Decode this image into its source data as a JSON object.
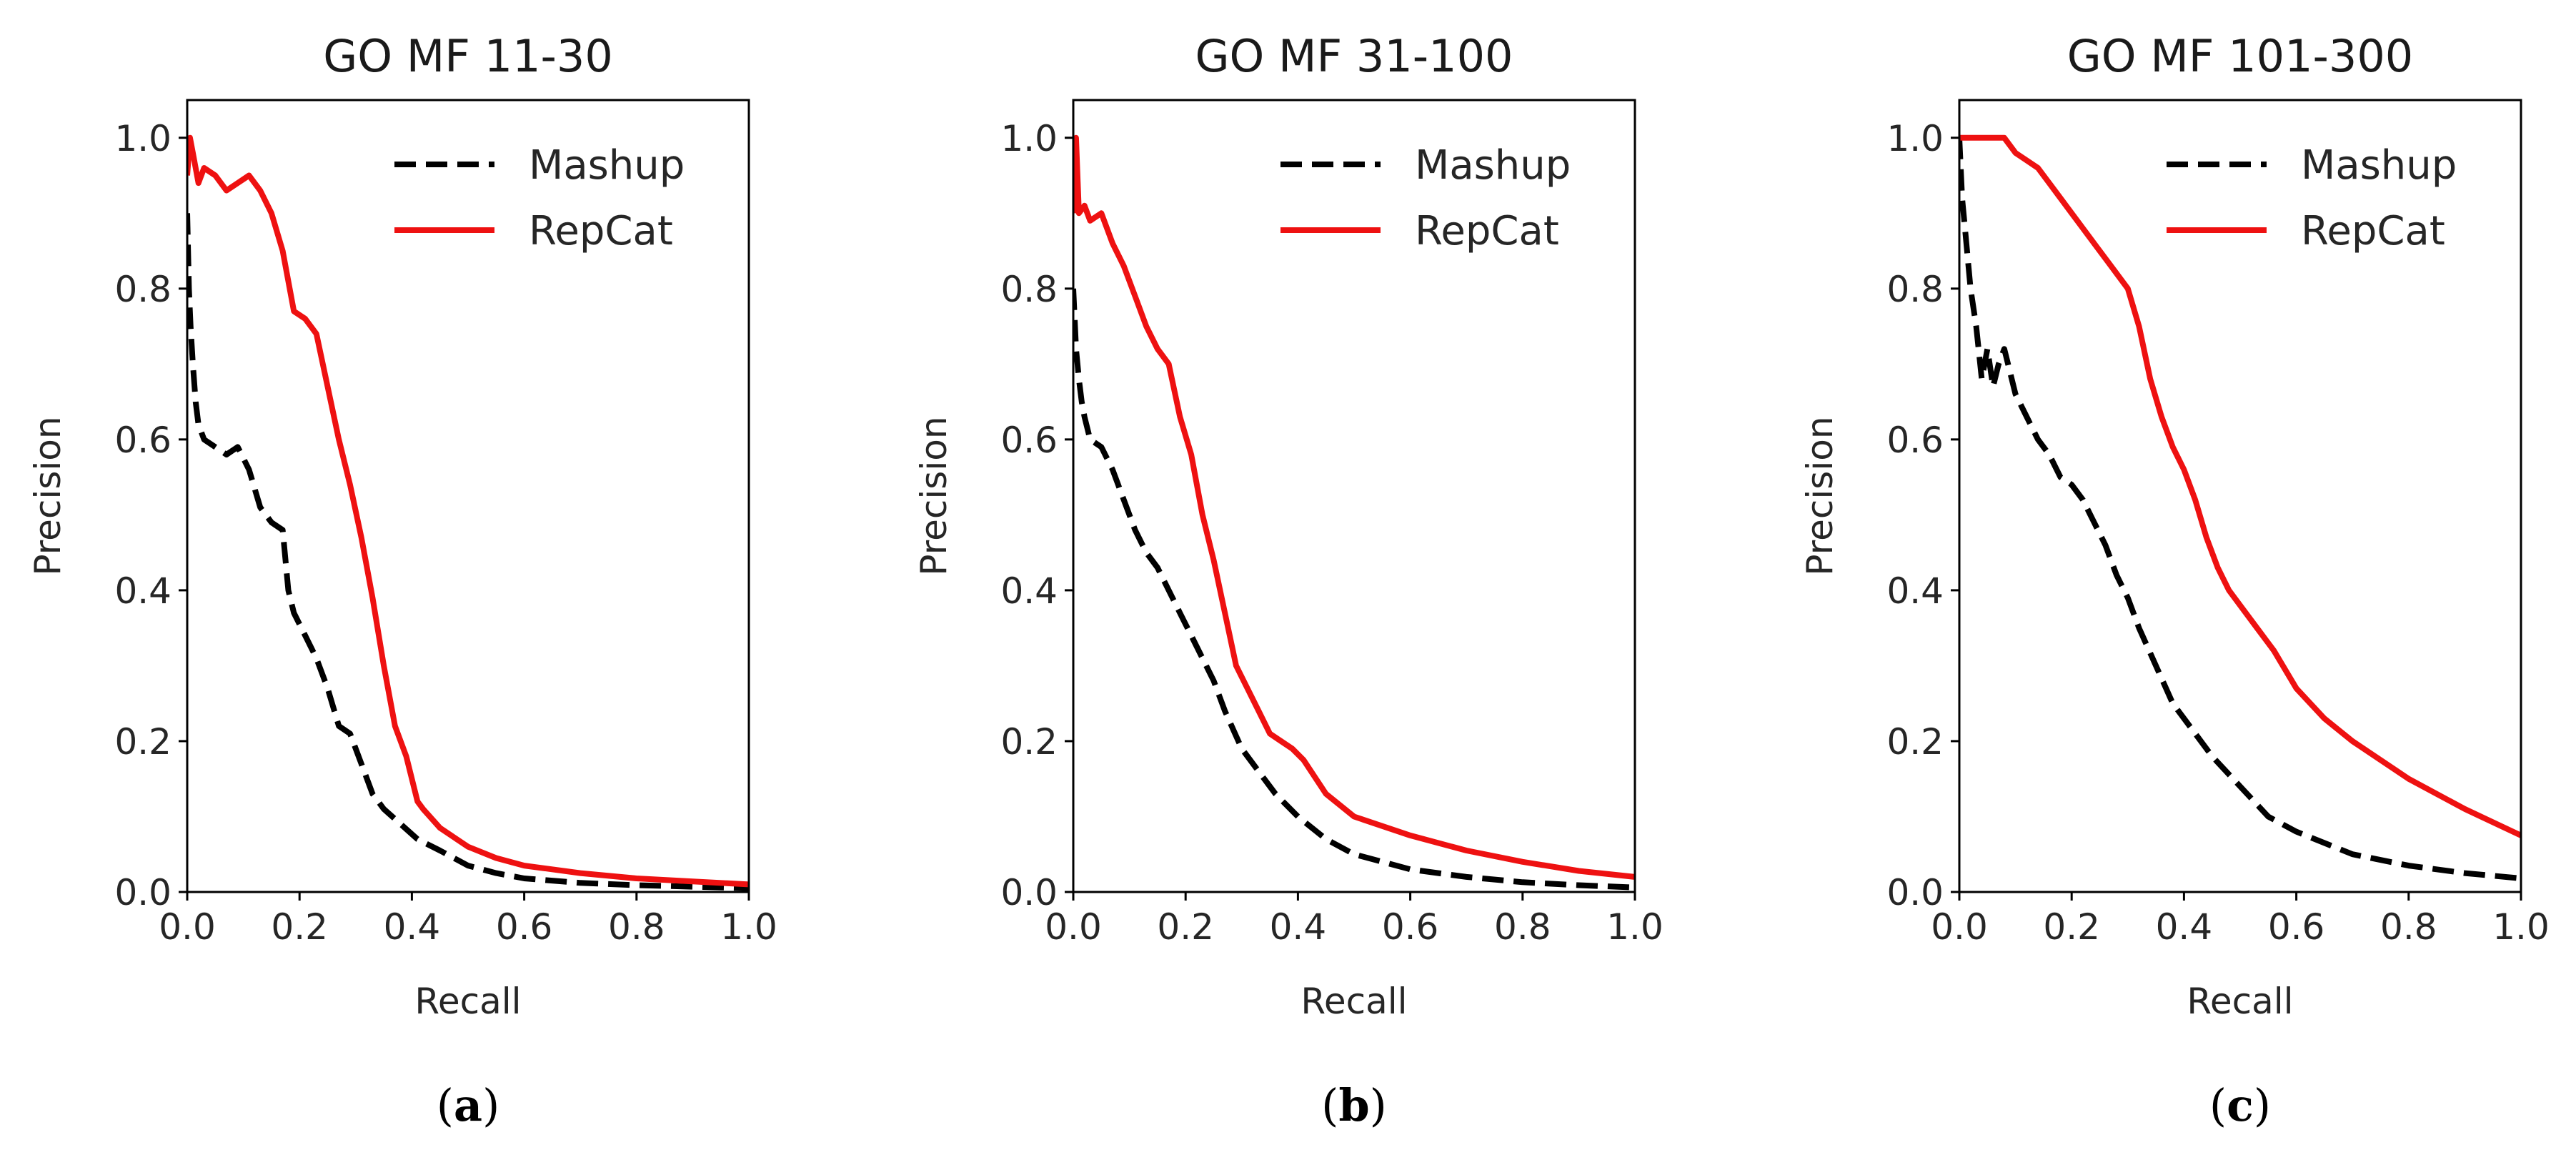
{
  "colors": {
    "mashup": "#000000",
    "repcat": "#ee1111",
    "axis": "#000000"
  },
  "chart_data": [
    {
      "type": "line",
      "title": "GO MF 11-30",
      "caption": {
        "open": "(",
        "letter": "a",
        "close": ")"
      },
      "xlabel": "Recall",
      "ylabel": "Precision",
      "xlim": [
        0,
        1.0
      ],
      "ylim": [
        0,
        1.05
      ],
      "xticks": [
        "0.0",
        "0.2",
        "0.4",
        "0.6",
        "0.8",
        "1.0"
      ],
      "yticks": [
        "0.0",
        "0.2",
        "0.4",
        "0.6",
        "0.8",
        "1.0"
      ],
      "legend": {
        "position": "top-right",
        "entries": [
          "Mashup",
          "RepCat"
        ]
      },
      "series": [
        {
          "name": "Mashup",
          "style": "dashed",
          "x": [
            0.0,
            0.003,
            0.006,
            0.01,
            0.015,
            0.02,
            0.03,
            0.05,
            0.07,
            0.09,
            0.11,
            0.13,
            0.15,
            0.17,
            0.18,
            0.19,
            0.21,
            0.23,
            0.25,
            0.27,
            0.29,
            0.31,
            0.33,
            0.35,
            0.38,
            0.41,
            0.45,
            0.5,
            0.55,
            0.6,
            0.7,
            0.8,
            0.9,
            1.0
          ],
          "y": [
            0.9,
            0.8,
            0.75,
            0.7,
            0.65,
            0.62,
            0.6,
            0.59,
            0.58,
            0.59,
            0.56,
            0.51,
            0.49,
            0.48,
            0.4,
            0.37,
            0.34,
            0.31,
            0.27,
            0.22,
            0.21,
            0.17,
            0.13,
            0.11,
            0.09,
            0.07,
            0.055,
            0.035,
            0.025,
            0.018,
            0.012,
            0.009,
            0.007,
            0.005
          ]
        },
        {
          "name": "RepCat",
          "style": "solid",
          "x": [
            0.0,
            0.005,
            0.01,
            0.02,
            0.03,
            0.05,
            0.07,
            0.09,
            0.11,
            0.13,
            0.15,
            0.17,
            0.19,
            0.21,
            0.23,
            0.25,
            0.27,
            0.29,
            0.31,
            0.33,
            0.35,
            0.37,
            0.39,
            0.41,
            0.42,
            0.45,
            0.5,
            0.55,
            0.6,
            0.7,
            0.8,
            0.9,
            1.0
          ],
          "y": [
            0.95,
            1.0,
            0.98,
            0.94,
            0.96,
            0.95,
            0.93,
            0.94,
            0.95,
            0.93,
            0.9,
            0.85,
            0.77,
            0.76,
            0.74,
            0.67,
            0.6,
            0.54,
            0.47,
            0.39,
            0.3,
            0.22,
            0.18,
            0.12,
            0.11,
            0.085,
            0.06,
            0.045,
            0.035,
            0.025,
            0.018,
            0.014,
            0.01
          ]
        }
      ]
    },
    {
      "type": "line",
      "title": "GO MF 31-100",
      "caption": {
        "open": "(",
        "letter": "b",
        "close": ")"
      },
      "xlabel": "Recall",
      "ylabel": "Precision",
      "xlim": [
        0,
        1.0
      ],
      "ylim": [
        0,
        1.05
      ],
      "xticks": [
        "0.0",
        "0.2",
        "0.4",
        "0.6",
        "0.8",
        "1.0"
      ],
      "yticks": [
        "0.0",
        "0.2",
        "0.4",
        "0.6",
        "0.8",
        "1.0"
      ],
      "legend": {
        "position": "top-right",
        "entries": [
          "Mashup",
          "RepCat"
        ]
      },
      "series": [
        {
          "name": "Mashup",
          "style": "dashed",
          "x": [
            0.0,
            0.005,
            0.01,
            0.015,
            0.02,
            0.03,
            0.05,
            0.07,
            0.09,
            0.11,
            0.13,
            0.15,
            0.17,
            0.19,
            0.21,
            0.23,
            0.25,
            0.27,
            0.3,
            0.33,
            0.36,
            0.4,
            0.45,
            0.5,
            0.6,
            0.7,
            0.8,
            0.9,
            1.0
          ],
          "y": [
            0.8,
            0.72,
            0.68,
            0.65,
            0.63,
            0.6,
            0.59,
            0.56,
            0.52,
            0.48,
            0.45,
            0.43,
            0.4,
            0.37,
            0.34,
            0.31,
            0.28,
            0.24,
            0.19,
            0.16,
            0.13,
            0.1,
            0.07,
            0.05,
            0.03,
            0.02,
            0.013,
            0.009,
            0.006
          ]
        },
        {
          "name": "RepCat",
          "style": "solid",
          "x": [
            0.0,
            0.005,
            0.01,
            0.02,
            0.03,
            0.05,
            0.07,
            0.09,
            0.11,
            0.13,
            0.15,
            0.17,
            0.19,
            0.21,
            0.23,
            0.25,
            0.27,
            0.29,
            0.31,
            0.33,
            0.35,
            0.37,
            0.39,
            0.41,
            0.45,
            0.5,
            0.6,
            0.7,
            0.8,
            0.9,
            1.0
          ],
          "y": [
            0.9,
            1.0,
            0.9,
            0.91,
            0.89,
            0.9,
            0.86,
            0.83,
            0.79,
            0.75,
            0.72,
            0.7,
            0.63,
            0.58,
            0.5,
            0.44,
            0.37,
            0.3,
            0.27,
            0.24,
            0.21,
            0.2,
            0.19,
            0.175,
            0.13,
            0.1,
            0.075,
            0.055,
            0.04,
            0.028,
            0.02
          ]
        }
      ]
    },
    {
      "type": "line",
      "title": "GO MF 101-300",
      "caption": {
        "open": "(",
        "letter": "c",
        "close": ")"
      },
      "xlabel": "Recall",
      "ylabel": "Precision",
      "xlim": [
        0,
        1.0
      ],
      "ylim": [
        0,
        1.05
      ],
      "xticks": [
        "0.0",
        "0.2",
        "0.4",
        "0.6",
        "0.8",
        "1.0"
      ],
      "yticks": [
        "0.0",
        "0.2",
        "0.4",
        "0.6",
        "0.8",
        "1.0"
      ],
      "legend": {
        "position": "top-right",
        "entries": [
          "Mashup",
          "RepCat"
        ]
      },
      "series": [
        {
          "name": "Mashup",
          "style": "dashed",
          "x": [
            0.0,
            0.005,
            0.01,
            0.02,
            0.03,
            0.04,
            0.05,
            0.06,
            0.07,
            0.08,
            0.1,
            0.12,
            0.14,
            0.16,
            0.18,
            0.2,
            0.22,
            0.24,
            0.26,
            0.28,
            0.3,
            0.32,
            0.35,
            0.38,
            0.41,
            0.45,
            0.5,
            0.55,
            0.6,
            0.7,
            0.8,
            0.9,
            1.0
          ],
          "y": [
            1.0,
            0.92,
            0.88,
            0.8,
            0.75,
            0.68,
            0.72,
            0.67,
            0.7,
            0.72,
            0.66,
            0.63,
            0.6,
            0.58,
            0.55,
            0.54,
            0.52,
            0.49,
            0.46,
            0.42,
            0.39,
            0.35,
            0.3,
            0.25,
            0.22,
            0.18,
            0.14,
            0.1,
            0.08,
            0.05,
            0.035,
            0.025,
            0.018
          ]
        },
        {
          "name": "RepCat",
          "style": "solid",
          "x": [
            0.0,
            0.02,
            0.04,
            0.06,
            0.08,
            0.1,
            0.12,
            0.14,
            0.16,
            0.18,
            0.2,
            0.22,
            0.24,
            0.26,
            0.28,
            0.3,
            0.32,
            0.34,
            0.36,
            0.38,
            0.4,
            0.42,
            0.44,
            0.46,
            0.48,
            0.5,
            0.53,
            0.56,
            0.6,
            0.65,
            0.7,
            0.8,
            0.9,
            1.0
          ],
          "y": [
            1.0,
            1.0,
            1.0,
            1.0,
            1.0,
            0.98,
            0.97,
            0.96,
            0.94,
            0.92,
            0.9,
            0.88,
            0.86,
            0.84,
            0.82,
            0.8,
            0.75,
            0.68,
            0.63,
            0.59,
            0.56,
            0.52,
            0.47,
            0.43,
            0.4,
            0.38,
            0.35,
            0.32,
            0.27,
            0.23,
            0.2,
            0.15,
            0.11,
            0.075
          ]
        }
      ]
    }
  ]
}
